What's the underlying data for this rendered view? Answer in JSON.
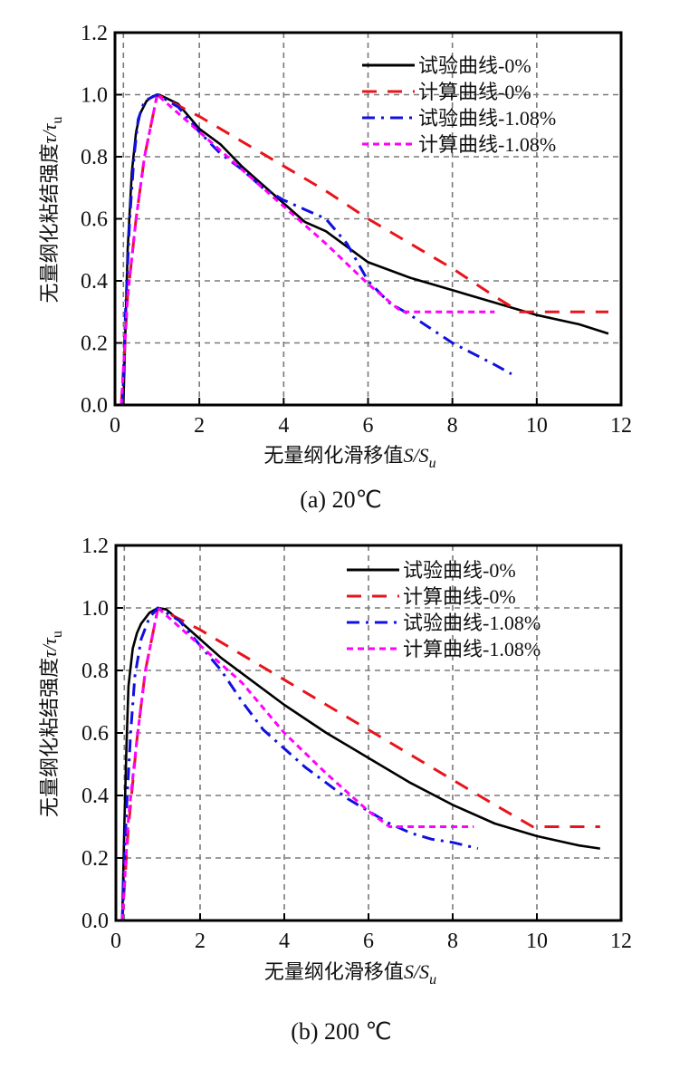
{
  "chart_data": [
    {
      "type": "line",
      "panel": "a",
      "caption": "(a) 20℃",
      "xlabel_cn": "无量纲化滑移值",
      "xlabel_var": "S/S",
      "xlabel_sub": "u",
      "ylabel_cn": "无量纲化粘结强度",
      "ylabel_var": "τ/τ",
      "ylabel_sub": "u",
      "xlim": [
        0,
        12
      ],
      "ylim": [
        0,
        1.2
      ],
      "xticks": [
        "0",
        "2",
        "4",
        "6",
        "8",
        "10",
        "12"
      ],
      "yticks": [
        "0.0",
        "0.2",
        "0.4",
        "0.6",
        "0.8",
        "1.0",
        "1.2"
      ],
      "grid": true,
      "legend_position": "top-right",
      "series": [
        {
          "name": "试验曲线-0%",
          "color": "#000000",
          "style": "solid",
          "x": [
            0.2,
            0.25,
            0.3,
            0.4,
            0.5,
            0.6,
            0.75,
            0.9,
            1.05,
            1.2,
            1.5,
            2.0,
            2.5,
            3.0,
            3.5,
            4.0,
            4.5,
            5.0,
            5.5,
            6.0,
            7.0,
            8.0,
            9.0,
            10.0,
            11.0,
            11.7
          ],
          "y": [
            0.0,
            0.25,
            0.5,
            0.75,
            0.88,
            0.94,
            0.98,
            0.995,
            1.0,
            0.99,
            0.97,
            0.89,
            0.84,
            0.77,
            0.71,
            0.65,
            0.59,
            0.56,
            0.51,
            0.46,
            0.41,
            0.37,
            0.33,
            0.29,
            0.26,
            0.23
          ]
        },
        {
          "name": "计算曲线-0%",
          "color": "#e8141c",
          "style": "dashed",
          "x": [
            0.15,
            0.3,
            0.5,
            0.7,
            1.0,
            2.0,
            3.0,
            4.0,
            5.0,
            6.0,
            7.0,
            8.0,
            9.0,
            9.6,
            10.0,
            11.7
          ],
          "y": [
            0.0,
            0.35,
            0.6,
            0.8,
            1.0,
            0.93,
            0.85,
            0.77,
            0.69,
            0.6,
            0.52,
            0.44,
            0.35,
            0.3,
            0.3,
            0.3
          ]
        },
        {
          "name": "试验曲线-1.08%",
          "color": "#1010e0",
          "style": "dashdot",
          "x": [
            0.18,
            0.25,
            0.35,
            0.45,
            0.55,
            0.7,
            0.85,
            1.0,
            1.5,
            2.0,
            2.5,
            3.0,
            3.5,
            4.0,
            4.5,
            5.0,
            5.5,
            6.0,
            6.5,
            7.0,
            8.0,
            9.0,
            9.4
          ],
          "y": [
            0.0,
            0.3,
            0.6,
            0.8,
            0.92,
            0.98,
            0.99,
            1.0,
            0.96,
            0.88,
            0.81,
            0.76,
            0.7,
            0.66,
            0.63,
            0.6,
            0.52,
            0.4,
            0.33,
            0.29,
            0.2,
            0.13,
            0.1
          ]
        },
        {
          "name": "计算曲线-1.08%",
          "color": "#ff00ff",
          "style": "dotted",
          "x": [
            0.15,
            0.3,
            0.5,
            0.7,
            1.0,
            2.0,
            3.0,
            4.0,
            5.0,
            6.0,
            6.8,
            7.0,
            9.0
          ],
          "y": [
            0.0,
            0.35,
            0.6,
            0.8,
            1.0,
            0.88,
            0.76,
            0.64,
            0.52,
            0.39,
            0.3,
            0.3,
            0.3
          ]
        }
      ]
    },
    {
      "type": "line",
      "panel": "b",
      "caption": "(b) 200 ℃",
      "xlabel_cn": "无量纲化滑移值",
      "xlabel_var": "S/S",
      "xlabel_sub": "u",
      "ylabel_cn": "无量纲化粘结强度",
      "ylabel_var": "τ/τ",
      "ylabel_sub": "u",
      "xlim": [
        0,
        12
      ],
      "ylim": [
        0,
        1.2
      ],
      "xticks": [
        "0",
        "2",
        "4",
        "6",
        "8",
        "10",
        "12"
      ],
      "yticks": [
        "0.0",
        "0.2",
        "0.4",
        "0.6",
        "0.8",
        "1.0",
        "1.2"
      ],
      "grid": true,
      "legend_position": "top-right",
      "series": [
        {
          "name": "试验曲线-0%",
          "color": "#000000",
          "style": "solid",
          "x": [
            0.15,
            0.2,
            0.25,
            0.3,
            0.4,
            0.5,
            0.6,
            0.8,
            1.0,
            1.2,
            1.5,
            2.0,
            2.5,
            3.0,
            4.0,
            5.0,
            6.0,
            7.0,
            8.0,
            9.0,
            10.0,
            11.0,
            11.5
          ],
          "y": [
            0.0,
            0.3,
            0.55,
            0.75,
            0.87,
            0.92,
            0.95,
            0.985,
            1.0,
            0.995,
            0.96,
            0.9,
            0.84,
            0.79,
            0.69,
            0.6,
            0.52,
            0.44,
            0.37,
            0.31,
            0.27,
            0.24,
            0.23
          ]
        },
        {
          "name": "计算曲线-0%",
          "color": "#e8141c",
          "style": "dashed",
          "x": [
            0.15,
            0.3,
            0.5,
            0.7,
            1.0,
            2.0,
            3.0,
            4.0,
            5.0,
            6.0,
            7.0,
            8.0,
            9.0,
            9.9,
            10.2,
            11.5
          ],
          "y": [
            0.0,
            0.3,
            0.58,
            0.8,
            1.0,
            0.93,
            0.85,
            0.77,
            0.69,
            0.61,
            0.53,
            0.45,
            0.37,
            0.3,
            0.3,
            0.3
          ]
        },
        {
          "name": "试验曲线-1.08%",
          "color": "#1010e0",
          "style": "dashdot",
          "x": [
            0.15,
            0.25,
            0.35,
            0.45,
            0.6,
            0.8,
            1.0,
            1.5,
            2.0,
            2.5,
            3.0,
            3.5,
            4.0,
            4.5,
            5.0,
            5.5,
            6.0,
            6.5,
            7.0,
            7.5,
            8.0,
            8.6
          ],
          "y": [
            0.0,
            0.35,
            0.6,
            0.78,
            0.9,
            0.97,
            1.0,
            0.96,
            0.88,
            0.8,
            0.7,
            0.61,
            0.55,
            0.49,
            0.44,
            0.39,
            0.35,
            0.31,
            0.28,
            0.26,
            0.25,
            0.23
          ]
        },
        {
          "name": "计算曲线-1.08%",
          "color": "#ff00ff",
          "style": "dotted",
          "x": [
            0.15,
            0.3,
            0.5,
            0.7,
            1.0,
            2.0,
            3.0,
            4.0,
            5.0,
            6.0,
            6.5,
            7.0,
            8.5
          ],
          "y": [
            0.0,
            0.33,
            0.58,
            0.8,
            1.0,
            0.88,
            0.76,
            0.6,
            0.47,
            0.35,
            0.3,
            0.3,
            0.3
          ]
        }
      ]
    }
  ]
}
